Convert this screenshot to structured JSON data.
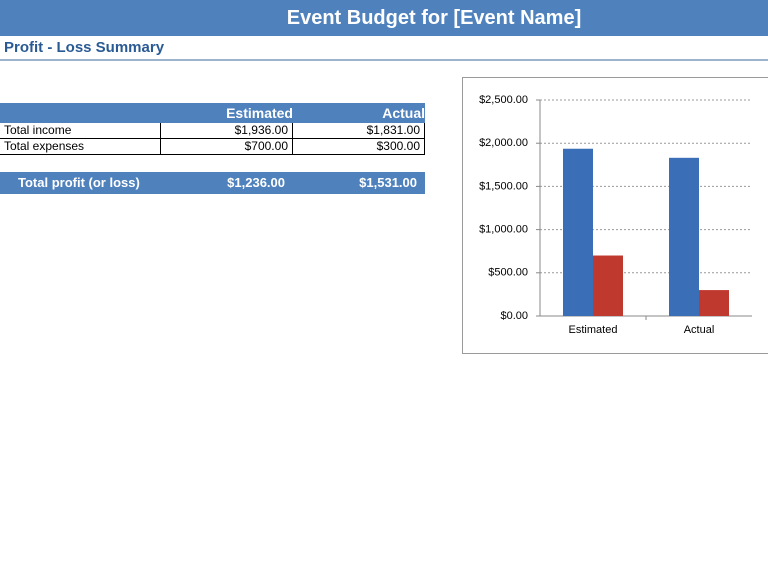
{
  "header": {
    "title": "Event Budget for [Event Name]",
    "subtitle": "Profit - Loss Summary"
  },
  "table": {
    "columns": [
      "Estimated",
      "Actual"
    ],
    "rows": [
      [
        "Total income",
        "$1,936.00",
        "$1,831.00"
      ],
      [
        "Total expenses",
        "$700.00",
        "$300.00"
      ]
    ],
    "total": [
      "Total profit (or loss)",
      "$1,236.00",
      "$1,531.00"
    ]
  },
  "chart_data": {
    "type": "bar",
    "categories": [
      "Estimated",
      "Actual"
    ],
    "series": [
      {
        "color": "#3a6fb8",
        "values": [
          1936,
          1831
        ]
      },
      {
        "color": "#c0392f",
        "values": [
          700,
          300
        ]
      }
    ],
    "ylim": [
      0,
      2500
    ],
    "yticks": [
      {
        "value": 0,
        "label": "$0.00"
      },
      {
        "value": 500,
        "label": "$500.00"
      },
      {
        "value": 1000,
        "label": "$1,000.00"
      },
      {
        "value": 1500,
        "label": "$1,500.00"
      },
      {
        "value": 2000,
        "label": "$2,000.00"
      },
      {
        "value": 2500,
        "label": "$2,500.00"
      }
    ],
    "grid": true
  }
}
